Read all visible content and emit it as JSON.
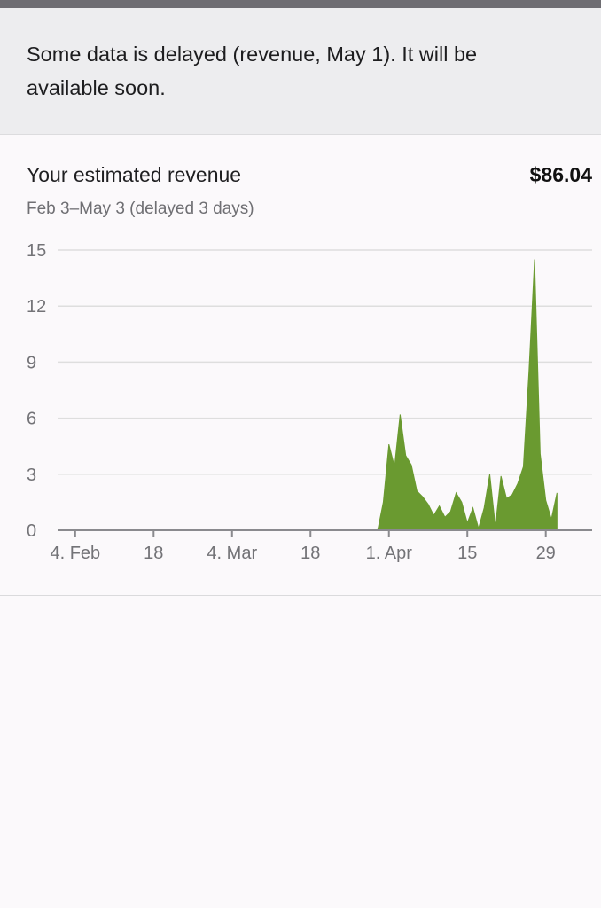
{
  "banner": {
    "message": "Some data is delayed (revenue, May 1). It will be available soon."
  },
  "card": {
    "title": "Your estimated revenue",
    "amount": "$86.04",
    "subtitle": "Feb 3–May 3 (delayed 3 days)"
  },
  "colors": {
    "area_fill": "#6a9a30",
    "grid": "#dedede",
    "axis": "#8a8a8e",
    "banner_bg": "#ededef",
    "top_bar": "#6e6d72"
  },
  "chart_data": {
    "type": "area",
    "ylim": [
      0,
      15
    ],
    "y_ticks": [
      0,
      3,
      6,
      9,
      12,
      15
    ],
    "x_ticks": [
      {
        "day": 1,
        "label": "4. Feb"
      },
      {
        "day": 15,
        "label": "18"
      },
      {
        "day": 29,
        "label": "4. Mar"
      },
      {
        "day": 43,
        "label": "18"
      },
      {
        "day": 57,
        "label": "1. Apr"
      },
      {
        "day": 71,
        "label": "15"
      },
      {
        "day": 85,
        "label": "29"
      }
    ],
    "grid": true,
    "x": [
      0,
      1,
      2,
      3,
      4,
      5,
      6,
      7,
      8,
      9,
      10,
      11,
      12,
      13,
      14,
      15,
      16,
      17,
      18,
      19,
      20,
      21,
      22,
      23,
      24,
      25,
      26,
      27,
      28,
      29,
      30,
      31,
      32,
      33,
      34,
      35,
      36,
      37,
      38,
      39,
      40,
      41,
      42,
      43,
      44,
      45,
      46,
      47,
      48,
      49,
      50,
      51,
      52,
      53,
      54,
      55,
      56,
      57,
      58,
      59,
      60,
      61,
      62,
      63,
      64,
      65,
      66,
      67,
      68,
      69,
      70,
      71,
      72,
      73,
      74,
      75,
      76,
      77,
      78,
      79,
      80,
      81,
      82,
      83,
      84,
      85,
      86,
      87
    ],
    "values": [
      0,
      0,
      0,
      0,
      0,
      0,
      0,
      0,
      0,
      0,
      0,
      0,
      0,
      0,
      0,
      0,
      0,
      0,
      0,
      0,
      0,
      0,
      0,
      0,
      0,
      0,
      0,
      0,
      0,
      0,
      0,
      0,
      0,
      0,
      0,
      0,
      0,
      0,
      0,
      0,
      0,
      0,
      0,
      0,
      0,
      0,
      0,
      0,
      0,
      0,
      0,
      0,
      0,
      0,
      0,
      0,
      1.5,
      4.6,
      3.4,
      6.2,
      4.0,
      3.5,
      2.1,
      1.8,
      1.4,
      0.8,
      1.3,
      0.7,
      1.0,
      2.0,
      1.5,
      0.4,
      1.2,
      0.1,
      1.2,
      3.0,
      0.2,
      2.9,
      1.7,
      1.9,
      2.5,
      3.4,
      8.5,
      14.5,
      4.1,
      1.6,
      0.6,
      2.0
    ],
    "last_day": 87
  }
}
